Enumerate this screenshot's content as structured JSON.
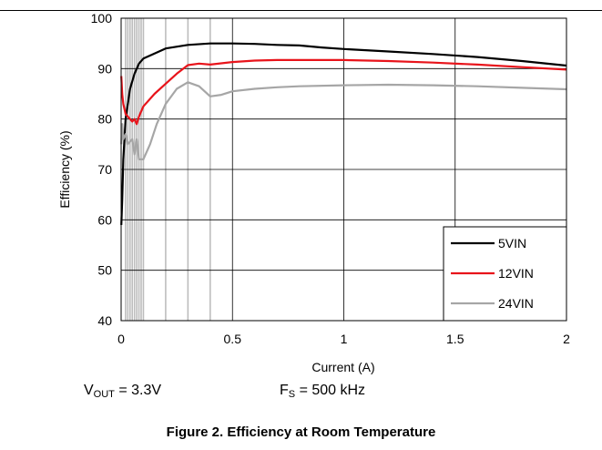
{
  "chart_data": {
    "type": "line",
    "xlabel": "Current (A)",
    "ylabel": "Efficiency (%)",
    "xlim": [
      0,
      2
    ],
    "ylim": [
      40,
      100
    ],
    "x_ticks": [
      "0",
      "0.5",
      "1",
      "1.5",
      "2"
    ],
    "y_ticks": [
      "40",
      "50",
      "60",
      "70",
      "80",
      "90",
      "100"
    ],
    "grid": true,
    "legend_position": "bottom-right",
    "series": [
      {
        "name": "5VIN",
        "color": "#000000",
        "points": [
          [
            0.001,
            59
          ],
          [
            0.005,
            64
          ],
          [
            0.01,
            72
          ],
          [
            0.02,
            80
          ],
          [
            0.04,
            86
          ],
          [
            0.06,
            89
          ],
          [
            0.08,
            91
          ],
          [
            0.1,
            92
          ],
          [
            0.15,
            93
          ],
          [
            0.2,
            94
          ],
          [
            0.3,
            94.7
          ],
          [
            0.4,
            95
          ],
          [
            0.5,
            95
          ],
          [
            0.6,
            94.9
          ],
          [
            0.7,
            94.7
          ],
          [
            0.8,
            94.6
          ],
          [
            0.9,
            94.2
          ],
          [
            1.0,
            93.9
          ],
          [
            1.2,
            93.4
          ],
          [
            1.4,
            92.9
          ],
          [
            1.6,
            92.3
          ],
          [
            1.8,
            91.5
          ],
          [
            2.0,
            90.6
          ]
        ]
      },
      {
        "name": "12VIN",
        "color": "#e8141b",
        "points": [
          [
            0.001,
            88.5
          ],
          [
            0.005,
            85
          ],
          [
            0.01,
            83
          ],
          [
            0.02,
            81
          ],
          [
            0.03,
            80.5
          ],
          [
            0.04,
            80
          ],
          [
            0.05,
            79.5
          ],
          [
            0.06,
            80
          ],
          [
            0.07,
            79
          ],
          [
            0.08,
            80.5
          ],
          [
            0.1,
            82.5
          ],
          [
            0.15,
            85
          ],
          [
            0.2,
            87
          ],
          [
            0.25,
            89
          ],
          [
            0.3,
            90.7
          ],
          [
            0.35,
            91
          ],
          [
            0.4,
            90.8
          ],
          [
            0.5,
            91.3
          ],
          [
            0.6,
            91.6
          ],
          [
            0.7,
            91.7
          ],
          [
            0.8,
            91.7
          ],
          [
            1.0,
            91.7
          ],
          [
            1.2,
            91.5
          ],
          [
            1.4,
            91.2
          ],
          [
            1.6,
            90.8
          ],
          [
            1.8,
            90.3
          ],
          [
            2.0,
            89.8
          ]
        ]
      },
      {
        "name": "24VIN",
        "color": "#a6a6a6",
        "points": [
          [
            0.001,
            75
          ],
          [
            0.005,
            79
          ],
          [
            0.01,
            76
          ],
          [
            0.02,
            77
          ],
          [
            0.03,
            75
          ],
          [
            0.05,
            76
          ],
          [
            0.06,
            73
          ],
          [
            0.07,
            76
          ],
          [
            0.08,
            72
          ],
          [
            0.1,
            72
          ],
          [
            0.13,
            75
          ],
          [
            0.16,
            79
          ],
          [
            0.2,
            83
          ],
          [
            0.25,
            86
          ],
          [
            0.3,
            87.3
          ],
          [
            0.35,
            86.5
          ],
          [
            0.4,
            84.5
          ],
          [
            0.45,
            84.8
          ],
          [
            0.5,
            85.5
          ],
          [
            0.6,
            86
          ],
          [
            0.7,
            86.3
          ],
          [
            0.8,
            86.5
          ],
          [
            1.0,
            86.7
          ],
          [
            1.2,
            86.8
          ],
          [
            1.4,
            86.7
          ],
          [
            1.6,
            86.5
          ],
          [
            1.8,
            86.2
          ],
          [
            2.0,
            85.9
          ]
        ]
      }
    ]
  },
  "conditions": {
    "vout_prefix": "V",
    "vout_sub": "OUT",
    "vout_value": " = 3.3V",
    "fs_prefix": "F",
    "fs_sub": "S",
    "fs_value": " = 500 kHz"
  },
  "caption": "Figure 2. Efficiency at Room Temperature"
}
